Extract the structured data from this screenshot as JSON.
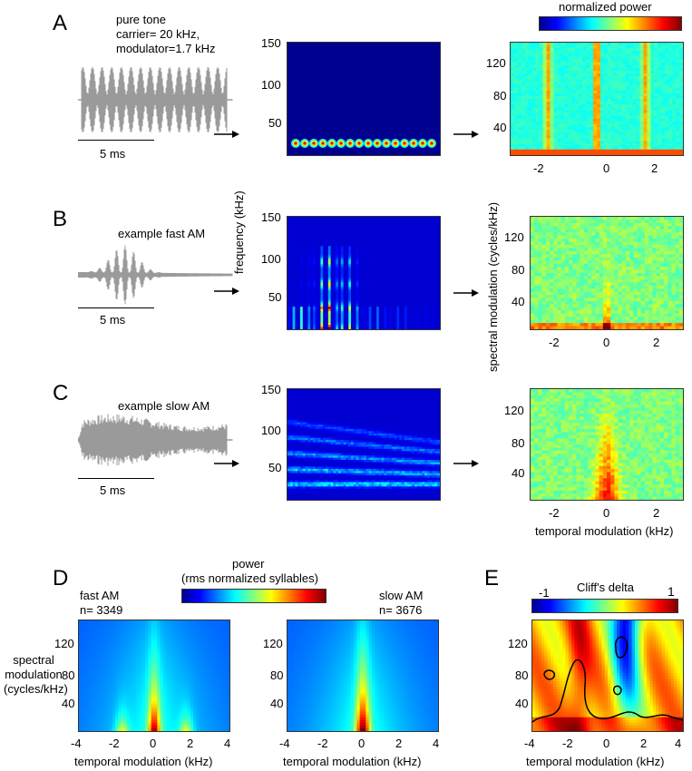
{
  "panels": {
    "A": {
      "letter": "A",
      "label_lines": [
        "pure tone",
        "carrier= 20 kHz,",
        "modulator=1.7 kHz"
      ],
      "scale": "5 ms"
    },
    "B": {
      "letter": "B",
      "label": "example fast AM",
      "scale": "5 ms"
    },
    "C": {
      "letter": "C",
      "label": "example slow AM",
      "scale": "5 ms"
    },
    "D": {
      "letter": "D",
      "fast_label": "fast AM",
      "fast_n": "n= 3349",
      "slow_label": "slow AM",
      "slow_n": "n= 3676",
      "colorbar_title_1": "power",
      "colorbar_title_2": "(rms normalized syllables)",
      "ylabel_lines": [
        "spectral",
        "modulation",
        "(cycles/kHz)"
      ],
      "xlabel": "temporal modulation (kHz)"
    },
    "E": {
      "letter": "E",
      "colorbar_title": "Cliff's delta",
      "colorbar_min": "-1",
      "colorbar_max": "1",
      "xlabel": "temporal modulation (kHz)"
    }
  },
  "top_colorbar_label": "normalized power",
  "spectrogram_ylabel": "frequency (kHz)",
  "mps_ylabel": "spectral modulation (cycles/kHz)",
  "mps_xlabel": "temporal modulation (kHz)",
  "chart_data": [
    {
      "type": "heatmap",
      "panel": "spectrograms",
      "ylabel": "frequency (kHz)",
      "yticks": [
        50,
        100,
        150
      ],
      "ylim": [
        10,
        150
      ]
    },
    {
      "type": "heatmap",
      "panel": "modulation power spectra (A-C right)",
      "xlabel": "temporal modulation (kHz)",
      "ylabel": "spectral modulation (cycles/kHz)",
      "xticks": [
        -2,
        0,
        2
      ],
      "yticks": [
        40,
        80,
        120
      ],
      "xlim": [
        -3,
        3
      ],
      "ylim": [
        0,
        150
      ]
    },
    {
      "type": "heatmap",
      "panel": "D",
      "series": [
        {
          "name": "fast AM",
          "n": 3349
        },
        {
          "name": "slow AM",
          "n": 3676
        }
      ],
      "xticks": [
        -4,
        -2,
        0,
        2,
        4
      ],
      "yticks": [
        40,
        80,
        120
      ],
      "xlim": [
        -4,
        4
      ],
      "ylim": [
        0,
        150
      ]
    },
    {
      "type": "heatmap",
      "panel": "E",
      "colorbar_range": [
        -1,
        1
      ],
      "xticks": [
        -4,
        -2,
        0,
        2,
        4
      ],
      "yticks": [
        40,
        80,
        120
      ],
      "xlim": [
        -4,
        4
      ],
      "ylim": [
        0,
        150
      ]
    }
  ],
  "ticks": {
    "spec_y": [
      "150",
      "100",
      "50"
    ],
    "mps_y": [
      "120",
      "80",
      "40"
    ],
    "mps_x": [
      "-2",
      "0",
      "2"
    ],
    "d_x": [
      "-4",
      "-2",
      "0",
      "2",
      "4"
    ]
  },
  "colors": {
    "waveform": "#9a9a9a",
    "jet_low": "#00008f",
    "jet_high": "#800000"
  }
}
